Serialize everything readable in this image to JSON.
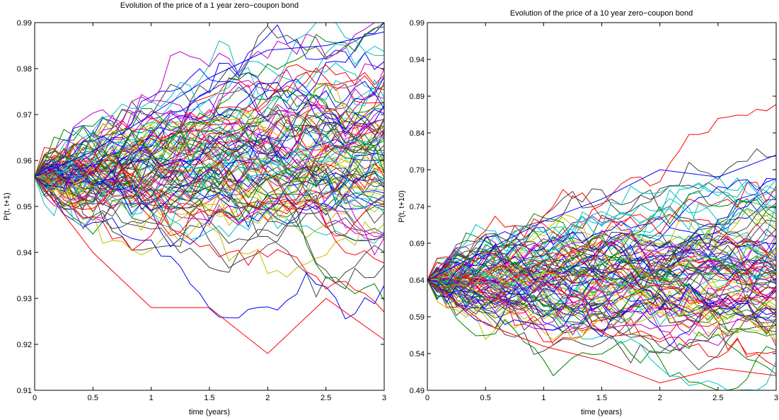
{
  "chart_data": [
    {
      "type": "line",
      "title": "Evolution of the price of a 1 year zero−coupon bond",
      "xlabel": "time (years)",
      "ylabel": "P(t, t+1)",
      "xlim": [
        0,
        3
      ],
      "ylim": [
        0.91,
        0.99
      ],
      "xticks": [
        "0",
        "0.5",
        "1",
        "1.5",
        "2",
        "2.5",
        "3"
      ],
      "yticks": [
        "0.91",
        "0.92",
        "0.93",
        "0.94",
        "0.95",
        "0.96",
        "0.97",
        "0.98",
        "0.99"
      ],
      "start_value": 0.9565,
      "path_count": 100,
      "step_count": 36,
      "approx_range_at_t3": [
        0.921,
        0.988
      ],
      "grid": false,
      "colors": [
        "#0000ff",
        "#008000",
        "#ff0000",
        "#00bfbf",
        "#bf00bf",
        "#bfbf00",
        "#404040"
      ],
      "notable_paths": [
        {
          "color": "#0000ff",
          "description": "highest",
          "x": [
            0,
            0.5,
            1,
            1.5,
            2,
            2.5,
            3
          ],
          "y": [
            0.9565,
            0.962,
            0.97,
            0.978,
            0.984,
            0.985,
            0.988
          ]
        },
        {
          "color": "#ff0000",
          "description": "lowest",
          "x": [
            0,
            0.5,
            1,
            1.5,
            2,
            2.5,
            3
          ],
          "y": [
            0.9565,
            0.94,
            0.928,
            0.928,
            0.918,
            0.93,
            0.921
          ]
        }
      ]
    },
    {
      "type": "line",
      "title": "Evolution of the price of a 10 year zero−coupon bond",
      "xlabel": "time (years)",
      "ylabel": "P(t, t+10)",
      "xlim": [
        0,
        3
      ],
      "ylim": [
        0.49,
        0.99
      ],
      "xticks": [
        "0",
        "0.5",
        "1",
        "1.5",
        "2",
        "2.5",
        "3"
      ],
      "yticks": [
        "0.49",
        "0.54",
        "0.59",
        "0.64",
        "0.69",
        "0.74",
        "0.79",
        "0.84",
        "0.89",
        "0.94",
        "0.99"
      ],
      "start_value": 0.64,
      "path_count": 100,
      "step_count": 36,
      "approx_range_at_t3": [
        0.51,
        0.81
      ],
      "grid": false,
      "colors": [
        "#0000ff",
        "#008000",
        "#ff0000",
        "#00bfbf",
        "#bf00bf",
        "#bfbf00",
        "#404040"
      ],
      "notable_paths": [
        {
          "color": "#0000ff",
          "description": "highest",
          "x": [
            0,
            0.5,
            1,
            1.5,
            2,
            2.5,
            3
          ],
          "y": [
            0.64,
            0.68,
            0.72,
            0.75,
            0.79,
            0.78,
            0.81
          ]
        },
        {
          "color": "#ff0000",
          "description": "lowest",
          "x": [
            0,
            0.5,
            1,
            1.5,
            2,
            2.5,
            3
          ],
          "y": [
            0.64,
            0.58,
            0.55,
            0.53,
            0.5,
            0.52,
            0.51
          ]
        }
      ]
    }
  ]
}
